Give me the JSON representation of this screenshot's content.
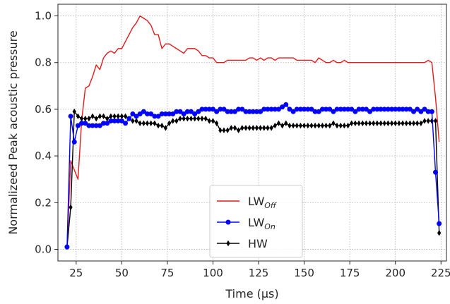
{
  "chart_data": {
    "type": "line",
    "xlabel": "Time (µs)",
    "ylabel": "Normalizeed Peak acoustic pressure",
    "xlim": [
      15,
      228
    ],
    "ylim": [
      -0.05,
      1.05
    ],
    "xticks": [
      25,
      50,
      75,
      100,
      125,
      150,
      175,
      200,
      225
    ],
    "yticks": [
      0.0,
      0.2,
      0.4,
      0.6,
      0.8,
      1.0
    ],
    "xtick_labels": [
      "25",
      "50",
      "75",
      "100",
      "125",
      "150",
      "175",
      "200",
      "225"
    ],
    "ytick_labels": [
      "0.0",
      "0.2",
      "0.4",
      "0.6",
      "0.8",
      "1.0"
    ],
    "grid": true,
    "legend_position": "lower-center",
    "series": [
      {
        "name": "LW",
        "subscript": "Off",
        "color": "#e41a1c",
        "marker": "none",
        "x": [
          20,
          22,
          24,
          26,
          28,
          30,
          32,
          34,
          36,
          38,
          40,
          42,
          44,
          46,
          48,
          50,
          52,
          54,
          56,
          58,
          60,
          62,
          64,
          66,
          68,
          70,
          72,
          74,
          76,
          78,
          80,
          82,
          84,
          86,
          88,
          90,
          92,
          94,
          96,
          98,
          100,
          102,
          104,
          106,
          108,
          110,
          112,
          114,
          116,
          118,
          120,
          122,
          124,
          126,
          128,
          130,
          132,
          134,
          136,
          138,
          140,
          142,
          144,
          146,
          148,
          150,
          152,
          154,
          156,
          158,
          160,
          162,
          164,
          166,
          168,
          170,
          172,
          174,
          176,
          178,
          180,
          182,
          184,
          186,
          188,
          190,
          192,
          194,
          196,
          198,
          200,
          202,
          204,
          206,
          208,
          210,
          212,
          214,
          216,
          218,
          220,
          222,
          224
        ],
        "y": [
          0.01,
          0.38,
          0.34,
          0.3,
          0.55,
          0.69,
          0.7,
          0.74,
          0.79,
          0.77,
          0.82,
          0.84,
          0.85,
          0.84,
          0.86,
          0.86,
          0.89,
          0.92,
          0.95,
          0.97,
          1.0,
          0.99,
          0.98,
          0.96,
          0.92,
          0.92,
          0.86,
          0.88,
          0.88,
          0.87,
          0.86,
          0.85,
          0.84,
          0.86,
          0.86,
          0.86,
          0.85,
          0.83,
          0.83,
          0.82,
          0.82,
          0.8,
          0.8,
          0.8,
          0.81,
          0.81,
          0.81,
          0.81,
          0.81,
          0.81,
          0.82,
          0.82,
          0.81,
          0.82,
          0.81,
          0.82,
          0.82,
          0.81,
          0.82,
          0.82,
          0.82,
          0.82,
          0.82,
          0.81,
          0.81,
          0.81,
          0.81,
          0.81,
          0.8,
          0.82,
          0.81,
          0.8,
          0.8,
          0.81,
          0.8,
          0.8,
          0.81,
          0.8,
          0.8,
          0.8,
          0.8,
          0.8,
          0.8,
          0.8,
          0.8,
          0.8,
          0.8,
          0.8,
          0.8,
          0.8,
          0.8,
          0.8,
          0.8,
          0.8,
          0.8,
          0.8,
          0.8,
          0.8,
          0.8,
          0.81,
          0.8,
          0.65,
          0.46
        ]
      },
      {
        "name": "LW",
        "subscript": "On",
        "color": "#0000ff",
        "marker": "circle",
        "x": [
          20,
          22,
          24,
          26,
          28,
          30,
          32,
          34,
          36,
          38,
          40,
          42,
          44,
          46,
          48,
          50,
          52,
          54,
          56,
          58,
          60,
          62,
          64,
          66,
          68,
          70,
          72,
          74,
          76,
          78,
          80,
          82,
          84,
          86,
          88,
          90,
          92,
          94,
          96,
          98,
          100,
          102,
          104,
          106,
          108,
          110,
          112,
          114,
          116,
          118,
          120,
          122,
          124,
          126,
          128,
          130,
          132,
          134,
          136,
          138,
          140,
          142,
          144,
          146,
          148,
          150,
          152,
          154,
          156,
          158,
          160,
          162,
          164,
          166,
          168,
          170,
          172,
          174,
          176,
          178,
          180,
          182,
          184,
          186,
          188,
          190,
          192,
          194,
          196,
          198,
          200,
          202,
          204,
          206,
          208,
          210,
          212,
          214,
          216,
          218,
          220,
          222,
          224
        ],
        "y": [
          0.01,
          0.57,
          0.46,
          0.53,
          0.54,
          0.54,
          0.53,
          0.53,
          0.53,
          0.53,
          0.54,
          0.54,
          0.55,
          0.55,
          0.55,
          0.55,
          0.54,
          0.56,
          0.58,
          0.57,
          0.58,
          0.59,
          0.58,
          0.58,
          0.57,
          0.57,
          0.58,
          0.58,
          0.58,
          0.58,
          0.59,
          0.59,
          0.58,
          0.59,
          0.59,
          0.58,
          0.59,
          0.6,
          0.6,
          0.6,
          0.6,
          0.59,
          0.6,
          0.6,
          0.59,
          0.59,
          0.59,
          0.6,
          0.6,
          0.59,
          0.59,
          0.59,
          0.59,
          0.59,
          0.6,
          0.6,
          0.6,
          0.6,
          0.6,
          0.61,
          0.62,
          0.6,
          0.59,
          0.6,
          0.6,
          0.6,
          0.6,
          0.6,
          0.59,
          0.59,
          0.6,
          0.6,
          0.6,
          0.59,
          0.6,
          0.6,
          0.6,
          0.6,
          0.6,
          0.59,
          0.6,
          0.6,
          0.6,
          0.59,
          0.6,
          0.6,
          0.6,
          0.6,
          0.6,
          0.6,
          0.6,
          0.6,
          0.6,
          0.6,
          0.6,
          0.59,
          0.6,
          0.59,
          0.6,
          0.59,
          0.59,
          0.33,
          0.11
        ]
      },
      {
        "name": "HW",
        "subscript": "",
        "color": "#000000",
        "marker": "diamond",
        "x": [
          20,
          22,
          24,
          26,
          28,
          30,
          32,
          34,
          36,
          38,
          40,
          42,
          44,
          46,
          48,
          50,
          52,
          54,
          56,
          58,
          60,
          62,
          64,
          66,
          68,
          70,
          72,
          74,
          76,
          78,
          80,
          82,
          84,
          86,
          88,
          90,
          92,
          94,
          96,
          98,
          100,
          102,
          104,
          106,
          108,
          110,
          112,
          114,
          116,
          118,
          120,
          122,
          124,
          126,
          128,
          130,
          132,
          134,
          136,
          138,
          140,
          142,
          144,
          146,
          148,
          150,
          152,
          154,
          156,
          158,
          160,
          162,
          164,
          166,
          168,
          170,
          172,
          174,
          176,
          178,
          180,
          182,
          184,
          186,
          188,
          190,
          192,
          194,
          196,
          198,
          200,
          202,
          204,
          206,
          208,
          210,
          212,
          214,
          216,
          218,
          220,
          222,
          224
        ],
        "y": [
          0.01,
          0.18,
          0.59,
          0.57,
          0.56,
          0.56,
          0.56,
          0.57,
          0.56,
          0.57,
          0.57,
          0.56,
          0.57,
          0.57,
          0.57,
          0.57,
          0.57,
          0.56,
          0.55,
          0.55,
          0.54,
          0.54,
          0.54,
          0.54,
          0.54,
          0.53,
          0.53,
          0.52,
          0.54,
          0.55,
          0.55,
          0.56,
          0.56,
          0.56,
          0.56,
          0.56,
          0.56,
          0.56,
          0.56,
          0.55,
          0.55,
          0.54,
          0.51,
          0.51,
          0.51,
          0.52,
          0.52,
          0.51,
          0.52,
          0.52,
          0.52,
          0.52,
          0.52,
          0.52,
          0.52,
          0.52,
          0.52,
          0.53,
          0.54,
          0.53,
          0.54,
          0.53,
          0.53,
          0.53,
          0.53,
          0.53,
          0.53,
          0.53,
          0.53,
          0.53,
          0.53,
          0.53,
          0.53,
          0.54,
          0.53,
          0.53,
          0.53,
          0.53,
          0.54,
          0.54,
          0.54,
          0.54,
          0.54,
          0.54,
          0.54,
          0.54,
          0.54,
          0.54,
          0.54,
          0.54,
          0.54,
          0.54,
          0.54,
          0.54,
          0.54,
          0.54,
          0.54,
          0.54,
          0.55,
          0.55,
          0.55,
          0.55,
          0.07
        ]
      }
    ]
  }
}
